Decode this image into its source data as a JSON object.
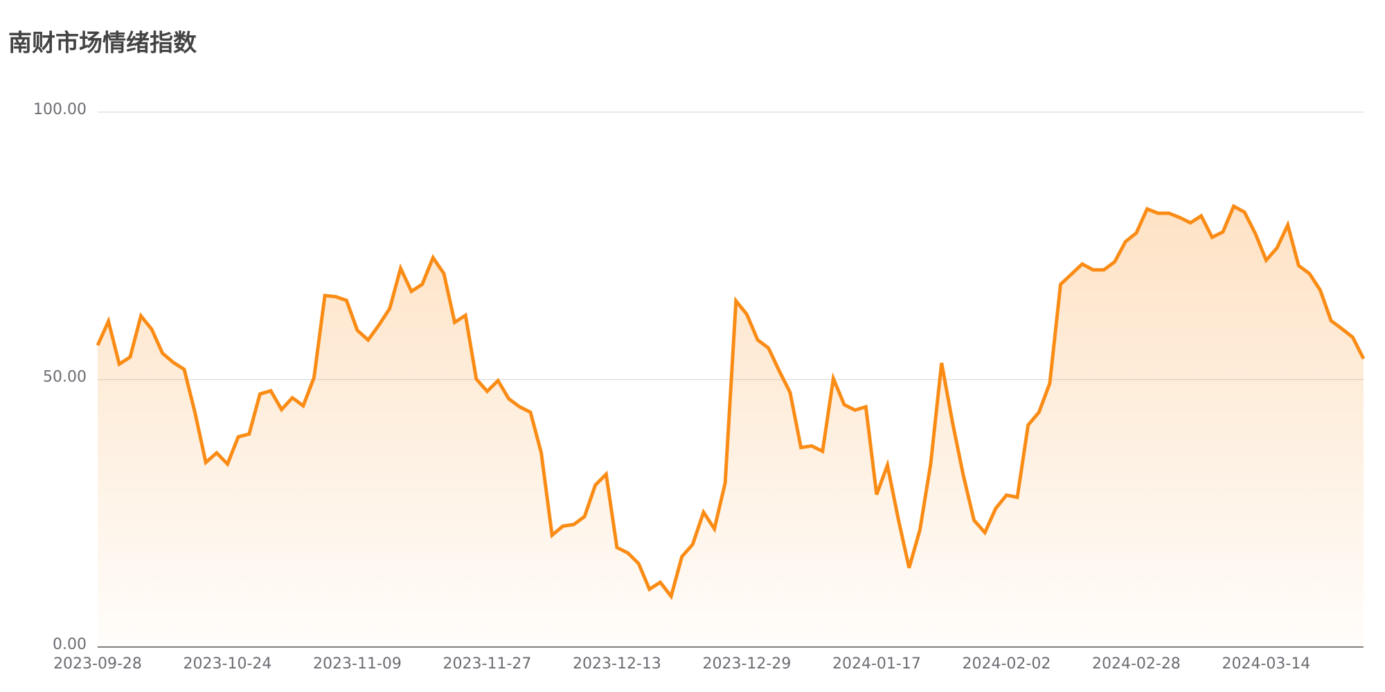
{
  "chart_data": {
    "type": "line",
    "title": "南财市场情绪指数",
    "categories": [
      "2023-09-28",
      null,
      null,
      null,
      null,
      null,
      null,
      null,
      null,
      null,
      null,
      null,
      "2023-10-24",
      null,
      null,
      null,
      null,
      null,
      null,
      null,
      null,
      null,
      null,
      null,
      "2023-11-09",
      null,
      null,
      null,
      null,
      null,
      null,
      null,
      null,
      null,
      null,
      null,
      "2023-11-27",
      null,
      null,
      null,
      null,
      null,
      null,
      null,
      null,
      null,
      null,
      null,
      "2023-12-13",
      null,
      null,
      null,
      null,
      null,
      null,
      null,
      null,
      null,
      null,
      null,
      "2023-12-29",
      null,
      null,
      null,
      null,
      null,
      null,
      null,
      null,
      null,
      null,
      null,
      "2024-01-17",
      null,
      null,
      null,
      null,
      null,
      null,
      null,
      null,
      null,
      null,
      null,
      "2024-02-02",
      null,
      null,
      null,
      null,
      null,
      null,
      null,
      null,
      null,
      null,
      null,
      "2024-02-28",
      null,
      null,
      null,
      null,
      null,
      null,
      null,
      null,
      null,
      null,
      null,
      "2024-03-14",
      null,
      null,
      null,
      null,
      null,
      null,
      null,
      null,
      null
    ],
    "values": [
      56.4,
      60.9,
      52.9,
      54.2,
      61.9,
      59.4,
      54.9,
      53.2,
      51.9,
      43.8,
      34.5,
      36.3,
      34.2,
      39.3,
      39.8,
      47.3,
      47.9,
      44.4,
      46.6,
      45.1,
      50.4,
      65.7,
      65.5,
      64.8,
      59.2,
      57.4,
      60.2,
      63.3,
      70.8,
      66.5,
      67.8,
      72.8,
      69.8,
      60.7,
      62.0,
      50.1,
      47.8,
      49.8,
      46.4,
      44.9,
      43.9,
      36.3,
      20.9,
      22.6,
      22.9,
      24.4,
      30.3,
      32.3,
      18.6,
      17.6,
      15.6,
      10.8,
      12.1,
      9.5,
      16.9,
      19.2,
      25.2,
      22.1,
      30.7,
      64.7,
      62.2,
      57.4,
      55.9,
      51.6,
      47.6,
      37.3,
      37.6,
      36.6,
      50.2,
      45.3,
      44.3,
      44.9,
      28.5,
      34.0,
      23.9,
      14.8,
      21.9,
      34.3,
      53.1,
      42.1,
      32.2,
      23.7,
      21.4,
      25.9,
      28.4,
      28.0,
      41.5,
      43.9,
      49.3,
      67.8,
      69.7,
      71.6,
      70.5,
      70.5,
      72.0,
      75.8,
      77.4,
      81.9,
      81.1,
      81.1,
      80.3,
      79.3,
      80.6,
      76.6,
      77.6,
      82.4,
      81.3,
      77.3,
      72.3,
      74.6,
      78.9,
      71.3,
      69.8,
      66.7,
      61.0,
      59.5,
      57.9,
      53.9
    ],
    "color": "#fa8c16",
    "ylim": [
      0,
      100
    ],
    "yticks": [
      {
        "value": 0,
        "label": "0.00"
      },
      {
        "value": 50,
        "label": "50.00"
      },
      {
        "value": 100,
        "label": "100.00"
      }
    ],
    "grid": true
  }
}
